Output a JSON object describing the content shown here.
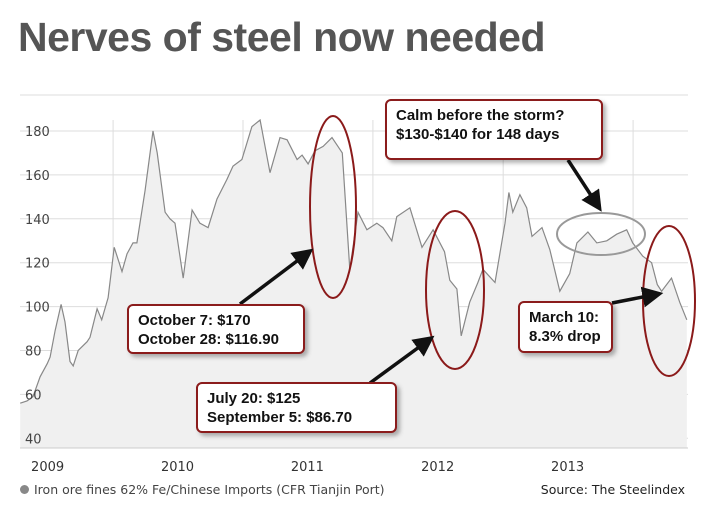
{
  "title": "Nerves of steel now needed",
  "legend_label": "Iron ore fines 62% Fe/Chinese Imports (CFR Tianjin Port)",
  "source": "Source: The Steelindex",
  "colors": {
    "line": "#888888",
    "fill": "#f0f0f0",
    "annotation": "#8b1a1a",
    "calm_ellipse": "#999999"
  },
  "chart_data": {
    "type": "area",
    "title": "Nerves of steel now needed",
    "xlabel": "",
    "ylabel": "",
    "ylim": [
      40,
      190
    ],
    "yticks": [
      40,
      60,
      80,
      100,
      120,
      140,
      160,
      180
    ],
    "xticks": [
      "2009",
      "2010",
      "2011",
      "2012",
      "2013"
    ],
    "grid": true,
    "legend": "bottom-left",
    "series": [
      {
        "name": "Iron ore fines 62% Fe/Chinese Imports (CFR Tianjin Port)",
        "points": [
          [
            "2009-04-15",
            56
          ],
          [
            "2009-05-04",
            57
          ],
          [
            "2009-05-21",
            59
          ],
          [
            "2009-06-10",
            68
          ],
          [
            "2009-06-30",
            74
          ],
          [
            "2009-07-08",
            77
          ],
          [
            "2009-07-22",
            89
          ],
          [
            "2009-08-08",
            101
          ],
          [
            "2009-08-19",
            93
          ],
          [
            "2009-09-02",
            75
          ],
          [
            "2009-09-11",
            73
          ],
          [
            "2009-09-25",
            80
          ],
          [
            "2009-10-20",
            84
          ],
          [
            "2009-10-28",
            86
          ],
          [
            "2009-11-17",
            99
          ],
          [
            "2009-11-30",
            94
          ],
          [
            "2009-12-18",
            104
          ],
          [
            "2010-01-04",
            127
          ],
          [
            "2010-01-26",
            116
          ],
          [
            "2010-02-09",
            124
          ],
          [
            "2010-02-26",
            129
          ],
          [
            "2010-03-09",
            129
          ],
          [
            "2010-04-01",
            153
          ],
          [
            "2010-04-23",
            180
          ],
          [
            "2010-05-05",
            170
          ],
          [
            "2010-05-27",
            143
          ],
          [
            "2010-06-10",
            140
          ],
          [
            "2010-06-24",
            138
          ],
          [
            "2010-07-17",
            113
          ],
          [
            "2010-08-11",
            144
          ],
          [
            "2010-09-02",
            138
          ],
          [
            "2010-09-25",
            136
          ],
          [
            "2010-10-20",
            149
          ],
          [
            "2010-11-17",
            158
          ],
          [
            "2010-12-04",
            164
          ],
          [
            "2010-12-29",
            167
          ],
          [
            "2011-01-26",
            182
          ],
          [
            "2011-02-18",
            185
          ],
          [
            "2011-03-18",
            161
          ],
          [
            "2011-04-15",
            177
          ],
          [
            "2011-05-05",
            176
          ],
          [
            "2011-06-02",
            167
          ],
          [
            "2011-06-16",
            169
          ],
          [
            "2011-07-03",
            165
          ],
          [
            "2011-07-22",
            171
          ],
          [
            "2011-08-14",
            173
          ],
          [
            "2011-09-08",
            177
          ],
          [
            "2011-10-07",
            170
          ],
          [
            "2011-10-28",
            116.9
          ],
          [
            "2011-11-20",
            143
          ],
          [
            "2011-12-15",
            135
          ],
          [
            "2012-01-12",
            138
          ],
          [
            "2012-01-29",
            136
          ],
          [
            "2012-02-23",
            130
          ],
          [
            "2012-03-08",
            141
          ],
          [
            "2012-04-14",
            145
          ],
          [
            "2012-05-18",
            127
          ],
          [
            "2012-06-18",
            135
          ],
          [
            "2012-07-20",
            125
          ],
          [
            "2012-08-04",
            112
          ],
          [
            "2012-08-24",
            108
          ],
          [
            "2012-09-05",
            86.7
          ],
          [
            "2012-09-29",
            102
          ],
          [
            "2012-10-22",
            111
          ],
          [
            "2012-11-05",
            117
          ],
          [
            "2012-12-09",
            111
          ],
          [
            "2013-01-06",
            138
          ],
          [
            "2013-01-17",
            152
          ],
          [
            "2013-01-28",
            143
          ],
          [
            "2013-02-17",
            151
          ],
          [
            "2013-03-08",
            145
          ],
          [
            "2013-03-23",
            132
          ],
          [
            "2013-04-20",
            136
          ],
          [
            "2013-05-12",
            126
          ],
          [
            "2013-06-09",
            107
          ],
          [
            "2013-07-07",
            115
          ],
          [
            "2013-07-27",
            129
          ],
          [
            "2013-08-27",
            134
          ],
          [
            "2013-09-21",
            129
          ],
          [
            "2013-10-19",
            130
          ],
          [
            "2013-11-16",
            133
          ],
          [
            "2013-12-14",
            135
          ],
          [
            "2013-12-31",
            129
          ],
          [
            "2014-01-28",
            123
          ],
          [
            "2014-02-22",
            120
          ],
          [
            "2014-03-10",
            110
          ],
          [
            "2014-03-22",
            107
          ],
          [
            "2014-04-19",
            113
          ],
          [
            "2014-05-12",
            102
          ],
          [
            "2014-06-01",
            94
          ]
        ]
      }
    ],
    "annotations": [
      {
        "lines": [
          "October 7: $170",
          "October 28: $116.90"
        ]
      },
      {
        "lines": [
          "July 20: $125",
          "September 5: $86.70"
        ]
      },
      {
        "lines": [
          "Calm before the storm?",
          "$130-$140 for 148 days"
        ]
      },
      {
        "lines": [
          "March 10:",
          "8.3% drop"
        ]
      }
    ]
  }
}
